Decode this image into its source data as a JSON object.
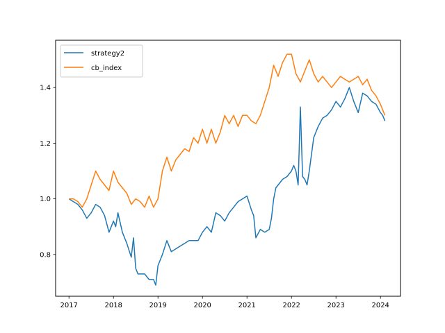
{
  "chart_data": {
    "type": "line",
    "title": "",
    "xlabel": "",
    "ylabel": "",
    "xlim": [
      2016.7,
      2024.45
    ],
    "ylim": [
      0.65,
      1.57
    ],
    "x_ticks": [
      2017,
      2018,
      2019,
      2020,
      2021,
      2022,
      2023,
      2024
    ],
    "y_ticks": [
      0.8,
      1.0,
      1.2,
      1.4
    ],
    "y_tick_labels": [
      "0.8",
      "1.0",
      "1.2",
      "1.4"
    ],
    "grid": false,
    "legend_position": "upper-left",
    "series": [
      {
        "name": "strategy2",
        "color": "#1f77b4",
        "x": [
          2017.0,
          2017.1,
          2017.2,
          2017.3,
          2017.4,
          2017.5,
          2017.6,
          2017.7,
          2017.8,
          2017.9,
          2018.0,
          2018.05,
          2018.1,
          2018.2,
          2018.3,
          2018.4,
          2018.45,
          2018.5,
          2018.55,
          2018.6,
          2018.7,
          2018.8,
          2018.9,
          2018.95,
          2019.0,
          2019.05,
          2019.1,
          2019.2,
          2019.3,
          2019.4,
          2019.5,
          2019.6,
          2019.7,
          2019.8,
          2019.9,
          2020.0,
          2020.1,
          2020.2,
          2020.3,
          2020.4,
          2020.5,
          2020.6,
          2020.7,
          2020.8,
          2020.9,
          2021.0,
          2021.1,
          2021.15,
          2021.2,
          2021.3,
          2021.4,
          2021.5,
          2021.55,
          2021.6,
          2021.65,
          2021.7,
          2021.8,
          2021.9,
          2022.0,
          2022.05,
          2022.1,
          2022.15,
          2022.2,
          2022.25,
          2022.3,
          2022.35,
          2022.4,
          2022.5,
          2022.6,
          2022.7,
          2022.8,
          2022.9,
          2023.0,
          2023.1,
          2023.2,
          2023.3,
          2023.4,
          2023.5,
          2023.6,
          2023.7,
          2023.8,
          2023.9,
          2024.0,
          2024.05,
          2024.1
        ],
        "y": [
          1.0,
          0.99,
          0.98,
          0.96,
          0.93,
          0.95,
          0.98,
          0.97,
          0.94,
          0.88,
          0.92,
          0.9,
          0.95,
          0.88,
          0.84,
          0.79,
          0.86,
          0.75,
          0.73,
          0.73,
          0.73,
          0.71,
          0.71,
          0.69,
          0.76,
          0.78,
          0.8,
          0.85,
          0.81,
          0.82,
          0.83,
          0.84,
          0.85,
          0.85,
          0.85,
          0.88,
          0.9,
          0.88,
          0.95,
          0.94,
          0.92,
          0.95,
          0.97,
          0.99,
          1.0,
          1.01,
          0.96,
          0.94,
          0.86,
          0.89,
          0.88,
          0.89,
          0.93,
          1.0,
          1.04,
          1.05,
          1.07,
          1.08,
          1.1,
          1.12,
          1.1,
          1.05,
          1.33,
          1.08,
          1.07,
          1.05,
          1.1,
          1.22,
          1.26,
          1.29,
          1.3,
          1.32,
          1.35,
          1.33,
          1.36,
          1.4,
          1.35,
          1.31,
          1.38,
          1.37,
          1.35,
          1.34,
          1.31,
          1.3,
          1.28
        ]
      },
      {
        "name": "cb_index",
        "color": "#ff7f0e",
        "x": [
          2017.0,
          2017.1,
          2017.2,
          2017.3,
          2017.4,
          2017.5,
          2017.6,
          2017.7,
          2017.8,
          2017.9,
          2018.0,
          2018.1,
          2018.2,
          2018.3,
          2018.4,
          2018.5,
          2018.6,
          2018.7,
          2018.8,
          2018.9,
          2019.0,
          2019.1,
          2019.2,
          2019.3,
          2019.4,
          2019.5,
          2019.6,
          2019.7,
          2019.8,
          2019.9,
          2020.0,
          2020.1,
          2020.2,
          2020.3,
          2020.4,
          2020.5,
          2020.6,
          2020.7,
          2020.8,
          2020.9,
          2021.0,
          2021.1,
          2021.2,
          2021.3,
          2021.4,
          2021.5,
          2021.6,
          2021.7,
          2021.8,
          2021.9,
          2022.0,
          2022.1,
          2022.2,
          2022.3,
          2022.4,
          2022.5,
          2022.6,
          2022.7,
          2022.8,
          2022.9,
          2023.0,
          2023.1,
          2023.2,
          2023.3,
          2023.4,
          2023.5,
          2023.6,
          2023.7,
          2023.8,
          2023.9,
          2024.0,
          2024.05,
          2024.1
        ],
        "y": [
          1.0,
          1.0,
          0.99,
          0.97,
          1.0,
          1.05,
          1.1,
          1.07,
          1.05,
          1.03,
          1.1,
          1.06,
          1.04,
          1.02,
          0.98,
          1.0,
          0.99,
          0.97,
          1.01,
          0.97,
          1.0,
          1.1,
          1.15,
          1.1,
          1.14,
          1.16,
          1.18,
          1.17,
          1.22,
          1.2,
          1.25,
          1.2,
          1.25,
          1.2,
          1.24,
          1.3,
          1.27,
          1.3,
          1.26,
          1.3,
          1.3,
          1.28,
          1.27,
          1.3,
          1.35,
          1.4,
          1.48,
          1.44,
          1.49,
          1.52,
          1.52,
          1.45,
          1.42,
          1.46,
          1.5,
          1.45,
          1.42,
          1.44,
          1.42,
          1.4,
          1.42,
          1.44,
          1.43,
          1.42,
          1.43,
          1.44,
          1.41,
          1.43,
          1.39,
          1.37,
          1.34,
          1.32,
          1.3
        ]
      }
    ]
  }
}
